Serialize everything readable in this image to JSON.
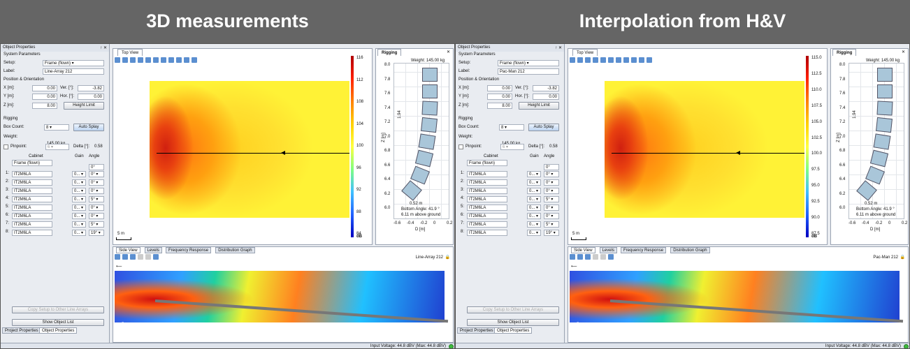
{
  "header": {
    "left_title": "3D measurements",
    "right_title": "Interpolation from H&V"
  },
  "panels": [
    {
      "op_title": "Object Properties",
      "pin": "↑ ✕",
      "system_params": "System Parameters",
      "setup_label": "Setup:",
      "setup_value": "Frame (flown)",
      "label_label": "Label:",
      "label_value": "Line-Array 212",
      "pos_header": "Position & Orientation",
      "x_label": "X [m]:",
      "x_value": "0.00",
      "ver_label": "Ver. [°]:",
      "ver_value": "-3.82",
      "y_label": "Y [m]:",
      "y_value": "0.00",
      "hor_label": "Hor. [°]:",
      "hor_value": "0.00",
      "z_label": "Z [m]:",
      "z_value": "8.00",
      "height_limit": "Height Limit",
      "rigging": "Rigging",
      "box_count_label": "Box Count:",
      "box_count_value": "8",
      "auto_splay": "Auto Splay",
      "weight_label": "Weight:",
      "weight_value": "145.00 kg",
      "pinpoint_label": "Pinpoint:",
      "pinpoint_value": "6",
      "delta_label": "Delta [°]:",
      "delta_value": "0.58",
      "cabinet_hdr": "Cabinet",
      "gain_hdr": "Gain",
      "angle_hdr": "Angle",
      "frame_value": "Frame (flown)",
      "angle0": "0°",
      "cabinets": [
        {
          "n": "1:",
          "name": "IT2M6LA",
          "gain": "0...",
          "angle": "0°"
        },
        {
          "n": "2:",
          "name": "IT2M6LA",
          "gain": "0...",
          "angle": "0°"
        },
        {
          "n": "3:",
          "name": "IT2M6LA",
          "gain": "0...",
          "angle": "0°"
        },
        {
          "n": "4:",
          "name": "IT2M6LA",
          "gain": "0...",
          "angle": "5°"
        },
        {
          "n": "5:",
          "name": "IT2M6LA",
          "gain": "0...",
          "angle": "0°"
        },
        {
          "n": "6:",
          "name": "IT2M6LA",
          "gain": "0...",
          "angle": "0°"
        },
        {
          "n": "7:",
          "name": "IT2M6LA",
          "gain": "0...",
          "angle": "5°"
        },
        {
          "n": "8:",
          "name": "IT2M6LA",
          "gain": "0...",
          "angle": "19°"
        }
      ],
      "copy_setup": "Copy Setup to Other Line Arrays",
      "show_list": "Show Object List",
      "tab_project": "Project Properties",
      "tab_object": "Object Properties",
      "top_view_tab": "Top View",
      "scale": "5 m",
      "cb_labels": [
        "116",
        "112",
        "108",
        "104",
        "100",
        "96",
        "92",
        "88",
        "84"
      ],
      "cb_unit": "dB",
      "rig_tab": "Rigging",
      "rig_weight": "Weight: 145.00 kg",
      "rig_y": [
        "8.0",
        "7.8",
        "7.6",
        "7.4",
        "7.2",
        "7.0",
        "6.8",
        "6.6",
        "6.4",
        "6.2",
        "6.0"
      ],
      "rig_x": [
        "-0.6",
        "-0.4",
        "-0.2",
        "0",
        "0.2"
      ],
      "rig_xlabel": "D [m]",
      "rig_ylabel": "Z [m]",
      "rig_dim": "1.94",
      "rig_width": "0.52 m",
      "rig_bottom": "Bottom Angle: 41.9 °",
      "rig_ground": "6.11 m above ground",
      "side_tabs": [
        "Side View",
        "Levels",
        "Frequency Response",
        "Distribution Graph"
      ],
      "side_label": "Line-Array 212",
      "status": "Input Voltage: 44.8 dBV (Max: 44.8 dBV)"
    },
    {
      "op_title": "Object Properties",
      "pin": "↑ ✕",
      "system_params": "System Parameters",
      "setup_label": "Setup:",
      "setup_value": "Frame (flown)",
      "label_label": "Label:",
      "label_value": "Pac-Man 212",
      "pos_header": "Position & Orientation",
      "x_label": "X [m]:",
      "x_value": "0.00",
      "ver_label": "Ver. [°]:",
      "ver_value": "-3.82",
      "y_label": "Y [m]:",
      "y_value": "0.00",
      "hor_label": "Hor. [°]:",
      "hor_value": "0.00",
      "z_label": "Z [m]:",
      "z_value": "8.00",
      "height_limit": "Height Limit",
      "rigging": "Rigging",
      "box_count_label": "Box Count:",
      "box_count_value": "8",
      "auto_splay": "Auto Splay",
      "weight_label": "Weight:",
      "weight_value": "145.00 kg",
      "pinpoint_label": "Pinpoint:",
      "pinpoint_value": "6",
      "delta_label": "Delta [°]:",
      "delta_value": "0.58",
      "cabinet_hdr": "Cabinet",
      "gain_hdr": "Gain",
      "angle_hdr": "Angle",
      "frame_value": "Frame (flown)",
      "angle0": "0°",
      "cabinets": [
        {
          "n": "1:",
          "name": "IT2M6LA",
          "gain": "0...",
          "angle": "0°"
        },
        {
          "n": "2:",
          "name": "IT2M6LA",
          "gain": "0...",
          "angle": "0°"
        },
        {
          "n": "3:",
          "name": "IT2M6LA",
          "gain": "0...",
          "angle": "0°"
        },
        {
          "n": "4:",
          "name": "IT2M6LA",
          "gain": "0...",
          "angle": "5°"
        },
        {
          "n": "5:",
          "name": "IT2M6LA",
          "gain": "0...",
          "angle": "0°"
        },
        {
          "n": "6:",
          "name": "IT2M6LA",
          "gain": "0...",
          "angle": "0°"
        },
        {
          "n": "7:",
          "name": "IT2M6LA",
          "gain": "0...",
          "angle": "5°"
        },
        {
          "n": "8:",
          "name": "IT2M6LA",
          "gain": "0...",
          "angle": "19°"
        }
      ],
      "copy_setup": "Copy Setup to Other Line Arrays",
      "show_list": "Show Object List",
      "tab_project": "Project Properties",
      "tab_object": "Object Properties",
      "top_view_tab": "Top View",
      "scale": "5 m",
      "cb_labels": [
        "115.0",
        "112.5",
        "110.0",
        "107.5",
        "105.0",
        "102.5",
        "100.0",
        "97.5",
        "95.0",
        "92.5",
        "90.0",
        "87.5"
      ],
      "cb_unit": "dB",
      "rig_tab": "Rigging",
      "rig_weight": "Weight: 145.00 kg",
      "rig_y": [
        "8.0",
        "7.8",
        "7.6",
        "7.4",
        "7.2",
        "7.0",
        "6.8",
        "6.6",
        "6.4",
        "6.2",
        "6.0"
      ],
      "rig_x": [
        "-0.6",
        "-0.4",
        "-0.2",
        "0",
        "0.2"
      ],
      "rig_xlabel": "D [m]",
      "rig_ylabel": "Z [m]",
      "rig_dim": "1.94",
      "rig_width": "0.52 m",
      "rig_bottom": "Bottom Angle: 41.9 °",
      "rig_ground": "6.11 m above ground",
      "side_tabs": [
        "Side View",
        "Levels",
        "Frequency Response",
        "Distribution Graph"
      ],
      "side_label": "Pac-Man 212",
      "status": "Input Voltage: 44.8 dBV (Max: 44.8 dBV)"
    }
  ]
}
